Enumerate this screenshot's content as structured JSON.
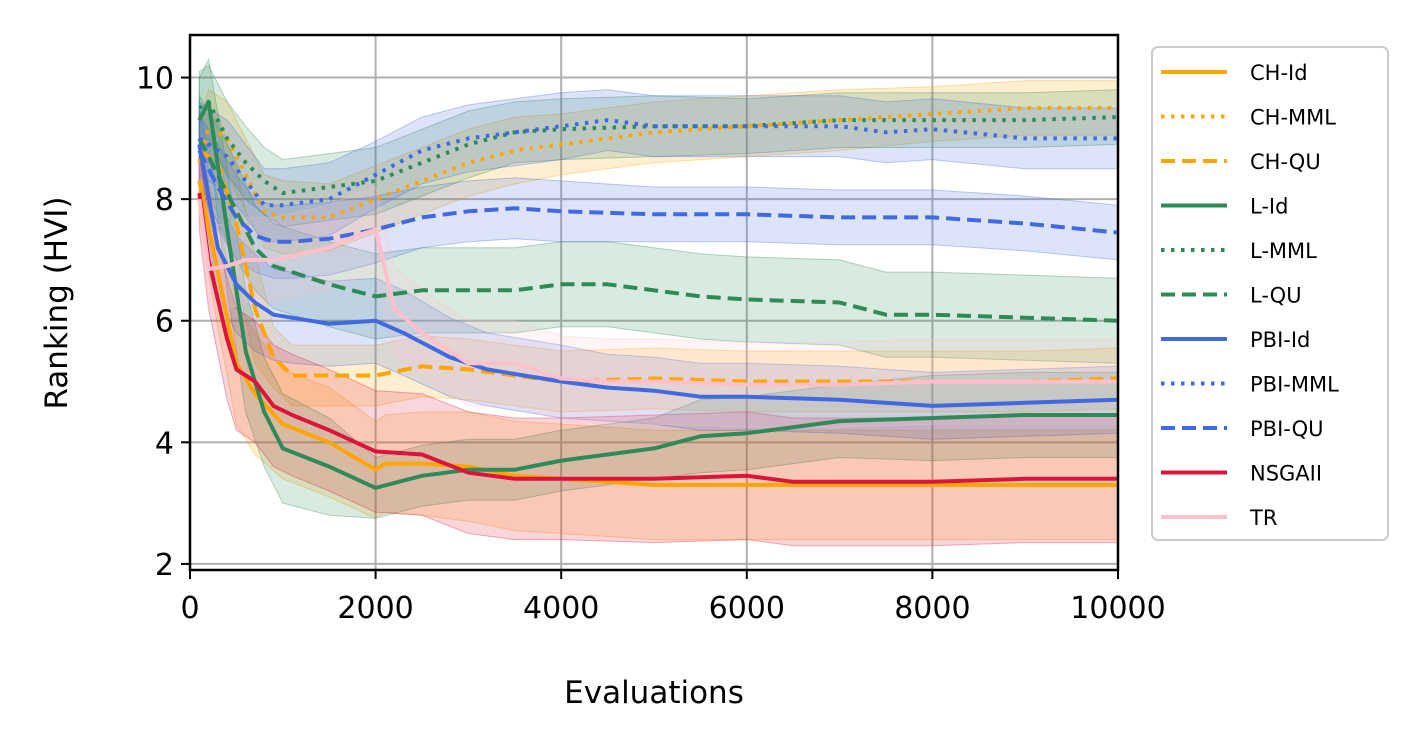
{
  "chart_data": {
    "type": "line",
    "title": "",
    "xlabel": "Evaluations",
    "ylabel": "Ranking (HVI)",
    "xlim": [
      0,
      10000
    ],
    "ylim": [
      1.9,
      10.7
    ],
    "xticks": [
      0,
      2000,
      4000,
      6000,
      8000,
      10000
    ],
    "yticks": [
      2,
      4,
      6,
      8,
      10
    ],
    "xtick_labels": [
      "0",
      "2000",
      "4000",
      "6000",
      "8000",
      "10000"
    ],
    "ytick_labels": [
      "2",
      "4",
      "6",
      "8",
      "10"
    ],
    "grid": true,
    "legend_position": "outside-right",
    "series": [
      {
        "name": "CH-Id",
        "color": "#FFA500",
        "style": "solid",
        "x": [
          100,
          300,
          500,
          700,
          1000,
          1500,
          2000,
          2100,
          2500,
          3000,
          3500,
          4000,
          5000,
          6000,
          7000,
          8000,
          9000,
          10000
        ],
        "y": [
          8.3,
          6.8,
          5.3,
          4.8,
          4.3,
          4.0,
          3.55,
          3.65,
          3.65,
          3.6,
          3.45,
          3.4,
          3.3,
          3.3,
          3.3,
          3.3,
          3.3,
          3.3
        ],
        "band": [
          0.6,
          0.9,
          1.0,
          1.0,
          0.9,
          0.9,
          0.8,
          0.8,
          0.85,
          0.9,
          0.9,
          0.9,
          0.9,
          0.9,
          0.9,
          0.9,
          0.9,
          0.9
        ]
      },
      {
        "name": "CH-MML",
        "color": "#FFA500",
        "style": "dotted",
        "x": [
          100,
          200,
          400,
          600,
          800,
          1000,
          1500,
          2000,
          2500,
          3000,
          3500,
          4000,
          5000,
          6000,
          7000,
          8000,
          9000,
          10000
        ],
        "y": [
          8.6,
          9.2,
          9.0,
          8.4,
          7.8,
          7.7,
          7.7,
          8.0,
          8.3,
          8.6,
          8.8,
          8.9,
          9.1,
          9.2,
          9.3,
          9.4,
          9.5,
          9.5
        ],
        "band": [
          0.6,
          0.6,
          0.6,
          0.6,
          0.6,
          0.6,
          0.55,
          0.55,
          0.55,
          0.55,
          0.55,
          0.5,
          0.5,
          0.5,
          0.5,
          0.45,
          0.45,
          0.45
        ]
      },
      {
        "name": "CH-QU",
        "color": "#FFA500",
        "style": "dashed",
        "x": [
          100,
          300,
          500,
          700,
          900,
          1100,
          1500,
          2000,
          2500,
          3000,
          3500,
          4000,
          5000,
          6000,
          7000,
          8000,
          9000,
          10000
        ],
        "y": [
          8.8,
          8.6,
          7.6,
          6.2,
          5.4,
          5.1,
          5.1,
          5.1,
          5.25,
          5.2,
          5.1,
          5.0,
          5.05,
          5.0,
          5.0,
          5.0,
          5.0,
          5.05
        ],
        "band": [
          0.6,
          0.8,
          0.9,
          0.9,
          0.5,
          0.5,
          0.5,
          0.5,
          0.5,
          0.5,
          0.5,
          0.5,
          0.5,
          0.5,
          0.5,
          0.5,
          0.5,
          0.5
        ]
      },
      {
        "name": "L-Id",
        "color": "#2E8B57",
        "style": "solid",
        "x": [
          100,
          200,
          400,
          600,
          800,
          1000,
          1500,
          2000,
          2500,
          3000,
          3500,
          4000,
          4500,
          5000,
          5500,
          6000,
          7000,
          8000,
          9000,
          10000
        ],
        "y": [
          9.3,
          9.6,
          7.5,
          5.5,
          4.5,
          3.9,
          3.6,
          3.25,
          3.45,
          3.55,
          3.55,
          3.7,
          3.8,
          3.9,
          4.1,
          4.15,
          4.35,
          4.4,
          4.45,
          4.45
        ],
        "band": [
          0.7,
          0.7,
          1.0,
          1.0,
          0.9,
          0.9,
          0.8,
          0.5,
          0.5,
          0.5,
          0.5,
          0.5,
          0.5,
          0.5,
          0.6,
          0.6,
          0.6,
          0.7,
          0.7,
          0.7
        ]
      },
      {
        "name": "L-MML",
        "color": "#2E8B57",
        "style": "dotted",
        "x": [
          100,
          200,
          400,
          600,
          800,
          1000,
          1500,
          2000,
          2500,
          3000,
          3500,
          4000,
          5000,
          6000,
          7000,
          8000,
          9000,
          10000
        ],
        "y": [
          9.5,
          9.6,
          9.0,
          8.6,
          8.3,
          8.1,
          8.2,
          8.3,
          8.6,
          8.9,
          9.1,
          9.15,
          9.2,
          9.2,
          9.3,
          9.3,
          9.3,
          9.35
        ],
        "band": [
          0.6,
          0.6,
          0.6,
          0.6,
          0.55,
          0.55,
          0.55,
          0.55,
          0.55,
          0.55,
          0.5,
          0.5,
          0.5,
          0.45,
          0.45,
          0.45,
          0.45,
          0.45
        ]
      },
      {
        "name": "L-QU",
        "color": "#2E8B57",
        "style": "dashed",
        "x": [
          100,
          300,
          500,
          700,
          900,
          1100,
          1500,
          2000,
          2500,
          3000,
          3500,
          4000,
          4500,
          5000,
          5500,
          6000,
          7000,
          7500,
          8000,
          9000,
          10000
        ],
        "y": [
          9.0,
          8.4,
          7.8,
          7.2,
          6.9,
          6.8,
          6.6,
          6.4,
          6.5,
          6.5,
          6.5,
          6.6,
          6.6,
          6.5,
          6.4,
          6.35,
          6.3,
          6.1,
          6.1,
          6.05,
          6.0
        ],
        "band": [
          0.7,
          0.8,
          0.8,
          0.7,
          0.7,
          0.7,
          0.7,
          0.7,
          0.7,
          0.7,
          0.7,
          0.7,
          0.7,
          0.7,
          0.7,
          0.7,
          0.7,
          0.7,
          0.7,
          0.7,
          0.7
        ]
      },
      {
        "name": "PBI-Id",
        "color": "#4169E1",
        "style": "solid",
        "x": [
          100,
          300,
          500,
          700,
          900,
          1100,
          1500,
          2000,
          2300,
          2800,
          3200,
          3600,
          4000,
          4500,
          5000,
          5500,
          6000,
          7000,
          8000,
          9000,
          10000
        ],
        "y": [
          8.9,
          7.2,
          6.6,
          6.3,
          6.1,
          6.05,
          5.95,
          6.0,
          5.8,
          5.4,
          5.2,
          5.1,
          5.0,
          4.9,
          4.85,
          4.75,
          4.75,
          4.7,
          4.6,
          4.65,
          4.7
        ],
        "band": [
          0.6,
          0.8,
          0.8,
          0.8,
          0.75,
          0.75,
          0.7,
          0.7,
          0.7,
          0.65,
          0.6,
          0.6,
          0.6,
          0.55,
          0.55,
          0.55,
          0.55,
          0.55,
          0.55,
          0.55,
          0.55
        ]
      },
      {
        "name": "PBI-MML",
        "color": "#4169E1",
        "style": "dotted",
        "x": [
          100,
          200,
          400,
          600,
          800,
          1000,
          1500,
          2000,
          2500,
          3000,
          3500,
          4000,
          4500,
          5000,
          6000,
          7000,
          7500,
          8000,
          9000,
          10000
        ],
        "y": [
          9.0,
          8.9,
          8.7,
          8.3,
          7.9,
          7.9,
          8.0,
          8.4,
          8.8,
          9.0,
          9.1,
          9.2,
          9.3,
          9.2,
          9.2,
          9.2,
          9.1,
          9.15,
          9.0,
          9.0
        ],
        "band": [
          0.6,
          0.6,
          0.6,
          0.6,
          0.6,
          0.6,
          0.6,
          0.55,
          0.55,
          0.55,
          0.55,
          0.55,
          0.5,
          0.5,
          0.5,
          0.5,
          0.5,
          0.5,
          0.5,
          0.5
        ]
      },
      {
        "name": "PBI-QU",
        "color": "#4169E1",
        "style": "dashed",
        "x": [
          100,
          300,
          500,
          700,
          900,
          1100,
          1500,
          2000,
          2500,
          3000,
          3500,
          4000,
          5000,
          6000,
          7000,
          8000,
          9000,
          10000
        ],
        "y": [
          8.8,
          8.2,
          7.7,
          7.4,
          7.3,
          7.3,
          7.35,
          7.5,
          7.7,
          7.8,
          7.85,
          7.8,
          7.75,
          7.75,
          7.7,
          7.7,
          7.6,
          7.45
        ],
        "band": [
          0.6,
          0.7,
          0.7,
          0.6,
          0.6,
          0.6,
          0.6,
          0.55,
          0.5,
          0.5,
          0.5,
          0.5,
          0.45,
          0.45,
          0.45,
          0.45,
          0.45,
          0.45
        ]
      },
      {
        "name": "NSGAII",
        "color": "#DC143C",
        "style": "solid",
        "x": [
          100,
          200,
          400,
          500,
          700,
          900,
          1100,
          1500,
          2000,
          2500,
          3000,
          3500,
          4000,
          5000,
          6000,
          6500,
          7000,
          8000,
          9000,
          10000
        ],
        "y": [
          8.1,
          7.0,
          5.7,
          5.2,
          5.0,
          4.6,
          4.45,
          4.2,
          3.85,
          3.8,
          3.5,
          3.4,
          3.4,
          3.4,
          3.45,
          3.35,
          3.35,
          3.35,
          3.4,
          3.4
        ],
        "band": [
          0.6,
          0.8,
          1.0,
          1.0,
          1.0,
          1.0,
          1.0,
          1.0,
          1.0,
          1.0,
          1.0,
          1.0,
          1.0,
          1.05,
          1.05,
          1.05,
          1.05,
          1.05,
          1.05,
          1.05
        ]
      },
      {
        "name": "TR",
        "color": "#FFC0CB",
        "style": "solid",
        "x": [
          100,
          200,
          400,
          600,
          900,
          1200,
          1500,
          1800,
          2000,
          2200,
          2500,
          3000,
          3500,
          4000,
          4500,
          5000,
          6000,
          7000,
          8000,
          9000,
          10000
        ],
        "y": [
          8.0,
          6.85,
          6.9,
          7.0,
          7.0,
          7.1,
          7.2,
          7.4,
          7.5,
          6.2,
          5.8,
          5.3,
          5.3,
          5.05,
          5.0,
          5.0,
          4.95,
          4.95,
          5.0,
          5.0,
          5.0
        ],
        "band": [
          0.6,
          0.7,
          0.7,
          0.7,
          0.7,
          0.7,
          0.7,
          0.7,
          0.7,
          0.7,
          0.7,
          0.7,
          0.7,
          0.7,
          0.7,
          0.7,
          0.7,
          0.7,
          0.7,
          0.7,
          0.7
        ]
      }
    ]
  }
}
